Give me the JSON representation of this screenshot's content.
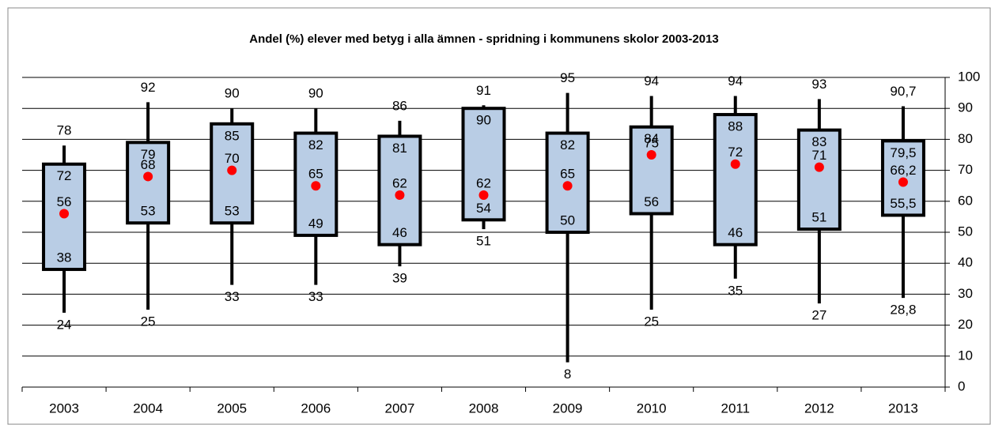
{
  "chart_data": {
    "type": "box",
    "title": "Andel (%) elever med betyg i alla ämnen - spridning i kommunens skolor 2003-2013",
    "categories": [
      "2003",
      "2004",
      "2005",
      "2006",
      "2007",
      "2008",
      "2009",
      "2010",
      "2011",
      "2012",
      "2013"
    ],
    "stats": {
      "max": {
        "values": [
          78,
          92,
          90,
          90,
          86,
          91,
          95,
          94,
          94,
          93,
          90.7
        ],
        "value_labels": [
          "78",
          "92",
          "90",
          "90",
          "86",
          "91",
          "95",
          "94",
          "94",
          "93",
          "90,7"
        ]
      },
      "q3": {
        "values": [
          72,
          79,
          85,
          82,
          81,
          90,
          82,
          84,
          88,
          83,
          79.5
        ],
        "value_labels": [
          "72",
          "79",
          "85",
          "82",
          "81",
          "90",
          "82",
          "84",
          "88",
          "83",
          "79,5"
        ]
      },
      "mean": {
        "values": [
          56,
          68,
          70,
          65,
          62,
          62,
          65,
          75,
          72,
          71,
          66.2
        ],
        "value_labels": [
          "56",
          "68",
          "70",
          "65",
          "62",
          "62",
          "65",
          "75",
          "72",
          "71",
          "66,2"
        ]
      },
      "q1": {
        "values": [
          38,
          53,
          53,
          49,
          46,
          54,
          50,
          56,
          46,
          51,
          55.5
        ],
        "value_labels": [
          "38",
          "53",
          "53",
          "49",
          "46",
          "54",
          "50",
          "56",
          "46",
          "51",
          "55,5"
        ]
      },
      "min": {
        "values": [
          24,
          25,
          33,
          33,
          39,
          51,
          8,
          25,
          35,
          27,
          28.8
        ],
        "value_labels": [
          "24",
          "25",
          "33",
          "33",
          "39",
          "51",
          "8",
          "25",
          "35",
          "27",
          "28,8"
        ]
      }
    },
    "box_color": "#b9cde5",
    "mean_color": "#ff0000",
    "ylim": [
      0,
      100
    ],
    "yticks": [
      0,
      10,
      20,
      30,
      40,
      50,
      60,
      70,
      80,
      90,
      100
    ],
    "grid": true
  }
}
